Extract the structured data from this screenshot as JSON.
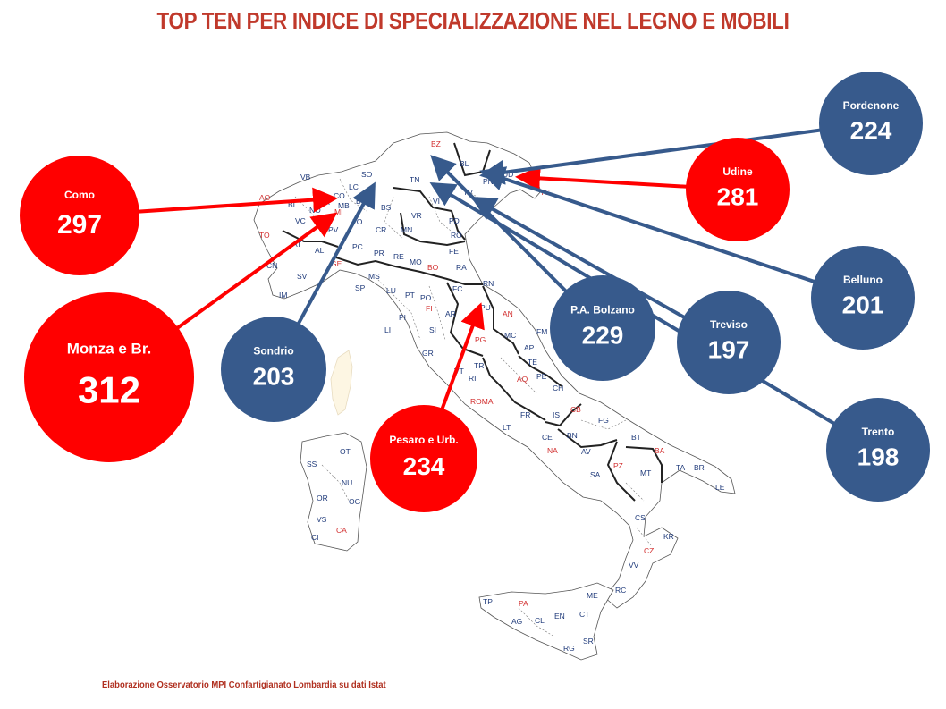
{
  "title": "TOP TEN PER INDICE DI SPECIALIZZAZIONE NEL LEGNO E MOBILI",
  "footer": "Elaborazione Osservatorio  MPI Confartigianato Lombardia  su dati Istat",
  "colors": {
    "red": "#ff0000",
    "blue": "#375a8c",
    "title": "#c0392b",
    "prov_blue": "#1f3a7a",
    "prov_red": "#d22f2f",
    "border": "#222222"
  },
  "chart_data": {
    "type": "map",
    "series": [
      {
        "name": "Monza e Br.",
        "value": 312,
        "group": "red"
      },
      {
        "name": "Como",
        "value": 297,
        "group": "red"
      },
      {
        "name": "Udine",
        "value": 281,
        "group": "red"
      },
      {
        "name": "Pesaro e Urb.",
        "value": 234,
        "group": "red"
      },
      {
        "name": "P.A. Bolzano",
        "value": 229,
        "group": "blue"
      },
      {
        "name": "Pordenone",
        "value": 224,
        "group": "blue"
      },
      {
        "name": "Sondrio",
        "value": 203,
        "group": "blue"
      },
      {
        "name": "Belluno",
        "value": 201,
        "group": "blue"
      },
      {
        "name": "Trento",
        "value": 198,
        "group": "blue"
      },
      {
        "name": "Treviso",
        "value": 197,
        "group": "blue"
      }
    ]
  },
  "province_labels": [
    {
      "t": "BZ",
      "c": "red"
    },
    {
      "t": "BL",
      "c": "blue"
    },
    {
      "t": "UD",
      "c": "blue"
    },
    {
      "t": "PN",
      "c": "blue"
    },
    {
      "t": "GO",
      "c": "blue"
    },
    {
      "t": "TS",
      "c": "red"
    },
    {
      "t": "TN",
      "c": "blue"
    },
    {
      "t": "VR",
      "c": "blue"
    },
    {
      "t": "VI",
      "c": "blue"
    },
    {
      "t": "TV",
      "c": "blue"
    },
    {
      "t": "VE",
      "c": "blue"
    },
    {
      "t": "PD",
      "c": "blue"
    },
    {
      "t": "RO",
      "c": "blue"
    },
    {
      "t": "VB",
      "c": "blue"
    },
    {
      "t": "AO",
      "c": "red"
    },
    {
      "t": "BI",
      "c": "blue"
    },
    {
      "t": "NO",
      "c": "blue"
    },
    {
      "t": "VC",
      "c": "blue"
    },
    {
      "t": "TO",
      "c": "red"
    },
    {
      "t": "AT",
      "c": "blue"
    },
    {
      "t": "AL",
      "c": "blue"
    },
    {
      "t": "CN",
      "c": "blue"
    },
    {
      "t": "SO",
      "c": "blue"
    },
    {
      "t": "LC",
      "c": "blue"
    },
    {
      "t": "CO",
      "c": "blue"
    },
    {
      "t": "MB",
      "c": "blue"
    },
    {
      "t": "VA",
      "c": "blue"
    },
    {
      "t": "MI",
      "c": "red"
    },
    {
      "t": "BG",
      "c": "blue"
    },
    {
      "t": "BS",
      "c": "blue"
    },
    {
      "t": "PV",
      "c": "blue"
    },
    {
      "t": "LO",
      "c": "blue"
    },
    {
      "t": "CR",
      "c": "blue"
    },
    {
      "t": "MN",
      "c": "blue"
    },
    {
      "t": "PC",
      "c": "blue"
    },
    {
      "t": "PR",
      "c": "blue"
    },
    {
      "t": "RE",
      "c": "blue"
    },
    {
      "t": "MO",
      "c": "blue"
    },
    {
      "t": "BO",
      "c": "red"
    },
    {
      "t": "FE",
      "c": "blue"
    },
    {
      "t": "RA",
      "c": "blue"
    },
    {
      "t": "FC",
      "c": "blue"
    },
    {
      "t": "RN",
      "c": "blue"
    },
    {
      "t": "IM",
      "c": "blue"
    },
    {
      "t": "SV",
      "c": "blue"
    },
    {
      "t": "GE",
      "c": "red"
    },
    {
      "t": "SP",
      "c": "blue"
    },
    {
      "t": "MS",
      "c": "blue"
    },
    {
      "t": "LU",
      "c": "blue"
    },
    {
      "t": "PT",
      "c": "blue"
    },
    {
      "t": "PO",
      "c": "blue"
    },
    {
      "t": "FI",
      "c": "red"
    },
    {
      "t": "PI",
      "c": "blue"
    },
    {
      "t": "LI",
      "c": "blue"
    },
    {
      "t": "SI",
      "c": "blue"
    },
    {
      "t": "AR",
      "c": "blue"
    },
    {
      "t": "GR",
      "c": "blue"
    },
    {
      "t": "PU",
      "c": "blue"
    },
    {
      "t": "AN",
      "c": "red"
    },
    {
      "t": "MC",
      "c": "blue"
    },
    {
      "t": "FM",
      "c": "blue"
    },
    {
      "t": "AP",
      "c": "blue"
    },
    {
      "t": "PG",
      "c": "red"
    },
    {
      "t": "TR",
      "c": "blue"
    },
    {
      "t": "VT",
      "c": "blue"
    },
    {
      "t": "RI",
      "c": "blue"
    },
    {
      "t": "ROMA",
      "c": "red"
    },
    {
      "t": "LT",
      "c": "blue"
    },
    {
      "t": "FR",
      "c": "blue"
    },
    {
      "t": "TE",
      "c": "blue"
    },
    {
      "t": "PE",
      "c": "blue"
    },
    {
      "t": "AQ",
      "c": "red"
    },
    {
      "t": "CH",
      "c": "blue"
    },
    {
      "t": "IS",
      "c": "blue"
    },
    {
      "t": "CB",
      "c": "red"
    },
    {
      "t": "CE",
      "c": "blue"
    },
    {
      "t": "BN",
      "c": "blue"
    },
    {
      "t": "NA",
      "c": "red"
    },
    {
      "t": "AV",
      "c": "blue"
    },
    {
      "t": "SA",
      "c": "blue"
    },
    {
      "t": "FG",
      "c": "blue"
    },
    {
      "t": "BT",
      "c": "blue"
    },
    {
      "t": "BA",
      "c": "red"
    },
    {
      "t": "TA",
      "c": "blue"
    },
    {
      "t": "BR",
      "c": "blue"
    },
    {
      "t": "LE",
      "c": "blue"
    },
    {
      "t": "PZ",
      "c": "red"
    },
    {
      "t": "MT",
      "c": "blue"
    },
    {
      "t": "CS",
      "c": "blue"
    },
    {
      "t": "KR",
      "c": "blue"
    },
    {
      "t": "CZ",
      "c": "red"
    },
    {
      "t": "VV",
      "c": "blue"
    },
    {
      "t": "RC",
      "c": "blue"
    },
    {
      "t": "ME",
      "c": "blue"
    },
    {
      "t": "TP",
      "c": "blue"
    },
    {
      "t": "PA",
      "c": "red"
    },
    {
      "t": "AG",
      "c": "blue"
    },
    {
      "t": "CL",
      "c": "blue"
    },
    {
      "t": "EN",
      "c": "blue"
    },
    {
      "t": "CT",
      "c": "blue"
    },
    {
      "t": "SR",
      "c": "blue"
    },
    {
      "t": "RG",
      "c": "blue"
    },
    {
      "t": "SS",
      "c": "blue"
    },
    {
      "t": "OT",
      "c": "blue"
    },
    {
      "t": "NU",
      "c": "blue"
    },
    {
      "t": "OR",
      "c": "blue"
    },
    {
      "t": "OG",
      "c": "blue"
    },
    {
      "t": "VS",
      "c": "blue"
    },
    {
      "t": "CI",
      "c": "blue"
    },
    {
      "t": "CA",
      "c": "red"
    }
  ]
}
